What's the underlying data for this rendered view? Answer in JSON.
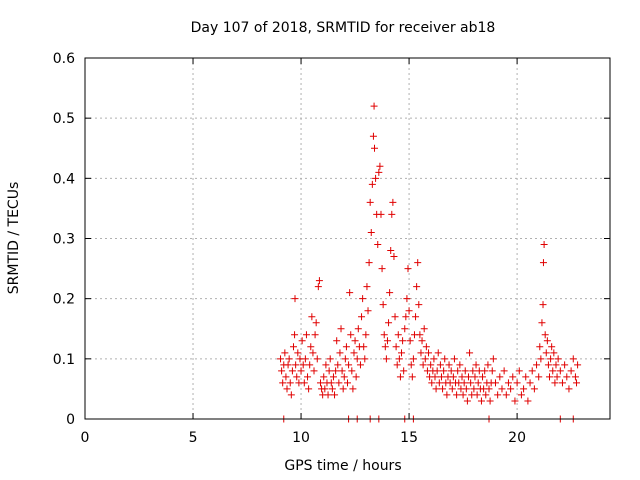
{
  "chart_data": {
    "type": "scatter",
    "title": "Day 107 of 2018, SRMTID for receiver ab18",
    "xlabel": "GPS time / hours",
    "ylabel": "SRMTID / TECUs",
    "xlim": [
      0,
      24.3
    ],
    "ylim": [
      0,
      0.6
    ],
    "xticks": [
      0,
      5,
      10,
      15,
      20
    ],
    "yticks": [
      0,
      0.1,
      0.2,
      0.3,
      0.4,
      0.5,
      0.6
    ],
    "xtick_labels": [
      "0",
      "5",
      "10",
      "15",
      "20"
    ],
    "ytick_labels": [
      "0",
      "0.1",
      "0.2",
      "0.3",
      "0.4",
      "0.5",
      "0.6"
    ],
    "grid": true,
    "marker": "+",
    "color": "#e00000",
    "series": [
      {
        "name": "SRMTID",
        "points": [
          [
            9.05,
            0.1
          ],
          [
            9.1,
            0.08
          ],
          [
            9.15,
            0.06
          ],
          [
            9.2,
            0.09
          ],
          [
            9.25,
            0.11
          ],
          [
            9.3,
            0.07
          ],
          [
            9.35,
            0.05
          ],
          [
            9.4,
            0.09
          ],
          [
            9.45,
            0.1
          ],
          [
            9.5,
            0.06
          ],
          [
            9.55,
            0.04
          ],
          [
            9.6,
            0.08
          ],
          [
            9.65,
            0.12
          ],
          [
            9.7,
            0.14
          ],
          [
            9.72,
            0.2
          ],
          [
            9.75,
            0.09
          ],
          [
            9.8,
            0.07
          ],
          [
            9.85,
            0.11
          ],
          [
            9.9,
            0.06
          ],
          [
            9.95,
            0.1
          ],
          [
            10.0,
            0.08
          ],
          [
            10.05,
            0.13
          ],
          [
            10.1,
            0.09
          ],
          [
            10.15,
            0.06
          ],
          [
            10.2,
            0.1
          ],
          [
            10.25,
            0.14
          ],
          [
            10.3,
            0.07
          ],
          [
            10.35,
            0.05
          ],
          [
            10.4,
            0.09
          ],
          [
            10.45,
            0.12
          ],
          [
            10.5,
            0.17
          ],
          [
            10.55,
            0.11
          ],
          [
            10.6,
            0.08
          ],
          [
            10.65,
            0.14
          ],
          [
            10.7,
            0.16
          ],
          [
            10.75,
            0.1
          ],
          [
            10.8,
            0.22
          ],
          [
            10.85,
            0.23
          ],
          [
            10.9,
            0.06
          ],
          [
            10.95,
            0.05
          ],
          [
            11.0,
            0.04
          ],
          [
            11.05,
            0.07
          ],
          [
            11.1,
            0.05
          ],
          [
            11.15,
            0.09
          ],
          [
            11.2,
            0.06
          ],
          [
            11.25,
            0.04
          ],
          [
            11.3,
            0.08
          ],
          [
            11.35,
            0.1
          ],
          [
            11.4,
            0.06
          ],
          [
            11.45,
            0.05
          ],
          [
            11.5,
            0.07
          ],
          [
            11.55,
            0.04
          ],
          [
            11.6,
            0.08
          ],
          [
            11.65,
            0.13
          ],
          [
            11.7,
            0.09
          ],
          [
            11.75,
            0.06
          ],
          [
            11.8,
            0.11
          ],
          [
            11.85,
            0.15
          ],
          [
            11.9,
            0.08
          ],
          [
            11.95,
            0.05
          ],
          [
            12.0,
            0.07
          ],
          [
            12.05,
            0.1
          ],
          [
            12.1,
            0.12
          ],
          [
            12.15,
            0.06
          ],
          [
            12.2,
            0.09
          ],
          [
            12.25,
            0.21
          ],
          [
            12.3,
            0.14
          ],
          [
            12.35,
            0.08
          ],
          [
            12.4,
            0.05
          ],
          [
            12.45,
            0.11
          ],
          [
            12.5,
            0.13
          ],
          [
            12.55,
            0.07
          ],
          [
            12.6,
            0.1
          ],
          [
            12.65,
            0.15
          ],
          [
            12.7,
            0.12
          ],
          [
            12.75,
            0.09
          ],
          [
            12.8,
            0.17
          ],
          [
            12.85,
            0.2
          ],
          [
            12.9,
            0.12
          ],
          [
            12.95,
            0.1
          ],
          [
            13.0,
            0.14
          ],
          [
            13.05,
            0.22
          ],
          [
            13.1,
            0.18
          ],
          [
            13.15,
            0.26
          ],
          [
            13.2,
            0.36
          ],
          [
            13.25,
            0.31
          ],
          [
            13.3,
            0.39
          ],
          [
            13.35,
            0.47
          ],
          [
            13.38,
            0.52
          ],
          [
            13.4,
            0.45
          ],
          [
            13.45,
            0.4
          ],
          [
            13.5,
            0.34
          ],
          [
            13.55,
            0.29
          ],
          [
            13.6,
            0.41
          ],
          [
            13.65,
            0.42
          ],
          [
            13.7,
            0.34
          ],
          [
            13.75,
            0.25
          ],
          [
            13.8,
            0.19
          ],
          [
            13.85,
            0.14
          ],
          [
            13.9,
            0.12
          ],
          [
            13.95,
            0.1
          ],
          [
            14.0,
            0.13
          ],
          [
            14.05,
            0.16
          ],
          [
            14.1,
            0.21
          ],
          [
            14.15,
            0.28
          ],
          [
            14.2,
            0.34
          ],
          [
            14.25,
            0.36
          ],
          [
            14.3,
            0.27
          ],
          [
            14.35,
            0.17
          ],
          [
            14.4,
            0.12
          ],
          [
            14.45,
            0.09
          ],
          [
            14.5,
            0.14
          ],
          [
            14.55,
            0.1
          ],
          [
            14.6,
            0.07
          ],
          [
            14.65,
            0.11
          ],
          [
            14.7,
            0.13
          ],
          [
            14.75,
            0.08
          ],
          [
            14.8,
            0.15
          ],
          [
            14.85,
            0.17
          ],
          [
            14.9,
            0.2
          ],
          [
            14.95,
            0.25
          ],
          [
            15.0,
            0.18
          ],
          [
            15.05,
            0.13
          ],
          [
            15.1,
            0.09
          ],
          [
            15.15,
            0.07
          ],
          [
            15.2,
            0.1
          ],
          [
            15.25,
            0.14
          ],
          [
            15.3,
            0.17
          ],
          [
            15.35,
            0.22
          ],
          [
            15.4,
            0.26
          ],
          [
            15.45,
            0.19
          ],
          [
            15.5,
            0.14
          ],
          [
            15.55,
            0.11
          ],
          [
            15.6,
            0.13
          ],
          [
            15.65,
            0.09
          ],
          [
            15.7,
            0.15
          ],
          [
            15.75,
            0.1
          ],
          [
            15.8,
            0.12
          ],
          [
            15.85,
            0.08
          ],
          [
            15.9,
            0.11
          ],
          [
            15.95,
            0.07
          ],
          [
            16.0,
            0.09
          ],
          [
            16.05,
            0.06
          ],
          [
            16.1,
            0.08
          ],
          [
            16.15,
            0.1
          ],
          [
            16.2,
            0.07
          ],
          [
            16.25,
            0.05
          ],
          [
            16.3,
            0.08
          ],
          [
            16.35,
            0.11
          ],
          [
            16.4,
            0.06
          ],
          [
            16.45,
            0.09
          ],
          [
            16.5,
            0.07
          ],
          [
            16.55,
            0.05
          ],
          [
            16.6,
            0.08
          ],
          [
            16.65,
            0.1
          ],
          [
            16.7,
            0.06
          ],
          [
            16.75,
            0.04
          ],
          [
            16.8,
            0.07
          ],
          [
            16.85,
            0.09
          ],
          [
            16.9,
            0.06
          ],
          [
            16.95,
            0.08
          ],
          [
            17.0,
            0.05
          ],
          [
            17.05,
            0.07
          ],
          [
            17.1,
            0.1
          ],
          [
            17.15,
            0.06
          ],
          [
            17.2,
            0.04
          ],
          [
            17.25,
            0.08
          ],
          [
            17.3,
            0.06
          ],
          [
            17.35,
            0.09
          ],
          [
            17.4,
            0.05
          ],
          [
            17.45,
            0.07
          ],
          [
            17.5,
            0.04
          ],
          [
            17.55,
            0.06
          ],
          [
            17.6,
            0.08
          ],
          [
            17.65,
            0.05
          ],
          [
            17.7,
            0.03
          ],
          [
            17.75,
            0.07
          ],
          [
            17.8,
            0.11
          ],
          [
            17.85,
            0.06
          ],
          [
            17.9,
            0.04
          ],
          [
            17.95,
            0.08
          ],
          [
            18.0,
            0.05
          ],
          [
            18.05,
            0.07
          ],
          [
            18.1,
            0.09
          ],
          [
            18.15,
            0.04
          ],
          [
            18.2,
            0.06
          ],
          [
            18.25,
            0.08
          ],
          [
            18.3,
            0.05
          ],
          [
            18.35,
            0.03
          ],
          [
            18.4,
            0.07
          ],
          [
            18.45,
            0.05
          ],
          [
            18.5,
            0.08
          ],
          [
            18.55,
            0.04
          ],
          [
            18.6,
            0.06
          ],
          [
            18.65,
            0.09
          ],
          [
            18.7,
            0.05
          ],
          [
            18.75,
            0.03
          ],
          [
            18.8,
            0.06
          ],
          [
            18.85,
            0.08
          ],
          [
            18.9,
            0.1
          ],
          [
            19.0,
            0.06
          ],
          [
            19.1,
            0.04
          ],
          [
            19.2,
            0.07
          ],
          [
            19.3,
            0.05
          ],
          [
            19.4,
            0.08
          ],
          [
            19.5,
            0.04
          ],
          [
            19.6,
            0.06
          ],
          [
            19.7,
            0.05
          ],
          [
            19.8,
            0.07
          ],
          [
            19.9,
            0.03
          ],
          [
            20.0,
            0.06
          ],
          [
            20.1,
            0.08
          ],
          [
            20.2,
            0.04
          ],
          [
            20.3,
            0.05
          ],
          [
            20.4,
            0.07
          ],
          [
            20.5,
            0.03
          ],
          [
            20.6,
            0.06
          ],
          [
            20.7,
            0.08
          ],
          [
            20.8,
            0.05
          ],
          [
            20.9,
            0.09
          ],
          [
            21.0,
            0.07
          ],
          [
            21.05,
            0.12
          ],
          [
            21.1,
            0.1
          ],
          [
            21.15,
            0.16
          ],
          [
            21.2,
            0.19
          ],
          [
            21.22,
            0.26
          ],
          [
            21.25,
            0.29
          ],
          [
            21.3,
            0.14
          ],
          [
            21.35,
            0.11
          ],
          [
            21.4,
            0.13
          ],
          [
            21.45,
            0.09
          ],
          [
            21.5,
            0.07
          ],
          [
            21.55,
            0.1
          ],
          [
            21.6,
            0.12
          ],
          [
            21.65,
            0.08
          ],
          [
            21.7,
            0.11
          ],
          [
            21.75,
            0.06
          ],
          [
            21.8,
            0.09
          ],
          [
            21.85,
            0.07
          ],
          [
            21.9,
            0.1
          ],
          [
            22.0,
            0.08
          ],
          [
            22.1,
            0.06
          ],
          [
            22.2,
            0.09
          ],
          [
            22.3,
            0.07
          ],
          [
            22.4,
            0.05
          ],
          [
            22.5,
            0.08
          ],
          [
            22.6,
            0.1
          ],
          [
            22.7,
            0.07
          ],
          [
            22.75,
            0.06
          ],
          [
            22.8,
            0.09
          ],
          [
            9.2,
            0.0
          ],
          [
            12.2,
            0.0
          ],
          [
            12.6,
            0.0
          ],
          [
            13.2,
            0.0
          ],
          [
            13.6,
            0.0
          ],
          [
            14.8,
            0.0
          ],
          [
            15.2,
            0.0
          ],
          [
            18.7,
            0.0
          ],
          [
            22.0,
            0.0
          ],
          [
            22.6,
            0.0
          ]
        ]
      }
    ]
  }
}
